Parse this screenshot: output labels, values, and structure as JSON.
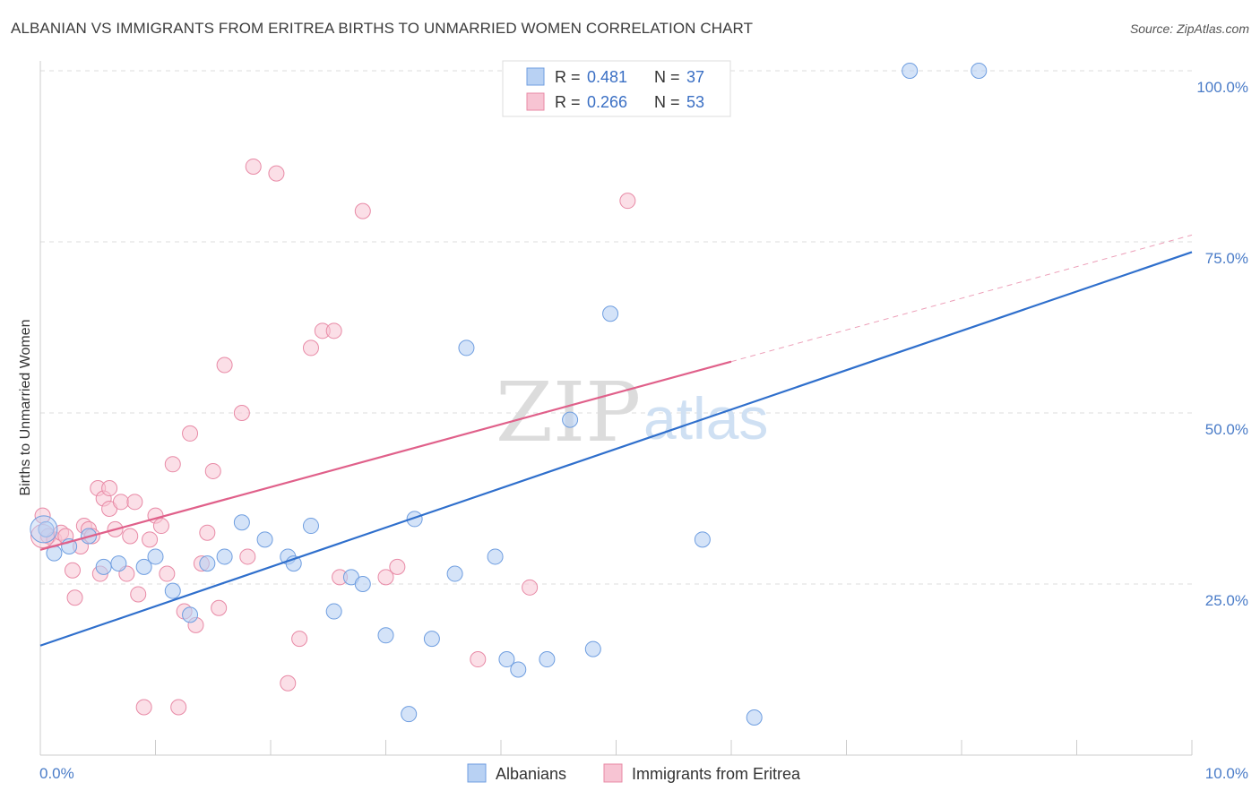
{
  "header": {
    "title": "ALBANIAN VS IMMIGRANTS FROM ERITREA BIRTHS TO UNMARRIED WOMEN CORRELATION CHART",
    "source": "Source: ZipAtlas.com"
  },
  "watermark": {
    "zip": "ZIP",
    "atlas": "atlas"
  },
  "colors": {
    "albanian_fill": "#b8d1f3",
    "albanian_stroke": "#6f9ee0",
    "albanian_line": "#2f6fcc",
    "eritrea_fill": "#f7c4d3",
    "eritrea_stroke": "#e88aa6",
    "eritrea_line": "#e0608a",
    "grid": "#dddddd",
    "axis_text": "#4a7cc8"
  },
  "legend": {
    "rows": [
      {
        "r_label": "R =",
        "r_value": "0.481",
        "n_label": "N =",
        "n_value": "37"
      },
      {
        "r_label": "R =",
        "r_value": "0.266",
        "n_label": "N =",
        "n_value": "53"
      }
    ]
  },
  "chart_data": {
    "type": "scatter",
    "title": "ALBANIAN VS IMMIGRANTS FROM ERITREA BIRTHS TO UNMARRIED WOMEN CORRELATION CHART",
    "xlabel": "",
    "ylabel": "Births to Unmarried Women",
    "xlim": [
      0,
      10
    ],
    "ylim": [
      0,
      105
    ],
    "x_tick_labels": [
      "0.0%",
      "10.0%"
    ],
    "y_ticks": [
      25,
      50,
      75,
      100
    ],
    "y_tick_labels": [
      "25.0%",
      "50.0%",
      "75.0%",
      "100.0%"
    ],
    "grid": true,
    "legend_position": "top-center",
    "series": [
      {
        "name": "Albanians",
        "r": 0.481,
        "n": 37,
        "trend": {
          "x": [
            0,
            10
          ],
          "y": [
            16.0,
            73.5
          ]
        },
        "points": [
          [
            0.05,
            33.0
          ],
          [
            0.12,
            29.5
          ],
          [
            0.25,
            30.5
          ],
          [
            0.42,
            32.0
          ],
          [
            0.55,
            27.5
          ],
          [
            0.68,
            28.0
          ],
          [
            0.9,
            27.5
          ],
          [
            1.0,
            29.0
          ],
          [
            1.15,
            24.0
          ],
          [
            1.3,
            20.5
          ],
          [
            1.45,
            28.0
          ],
          [
            1.6,
            29.0
          ],
          [
            1.75,
            34.0
          ],
          [
            1.95,
            31.5
          ],
          [
            2.15,
            29.0
          ],
          [
            2.2,
            28.0
          ],
          [
            2.35,
            33.5
          ],
          [
            2.55,
            21.0
          ],
          [
            2.7,
            26.0
          ],
          [
            2.8,
            25.0
          ],
          [
            3.0,
            17.5
          ],
          [
            3.2,
            6.0
          ],
          [
            3.25,
            34.5
          ],
          [
            3.4,
            17.0
          ],
          [
            3.6,
            26.5
          ],
          [
            3.7,
            59.5
          ],
          [
            3.95,
            29.0
          ],
          [
            4.05,
            14.0
          ],
          [
            4.15,
            12.5
          ],
          [
            4.4,
            14.0
          ],
          [
            4.6,
            49.0
          ],
          [
            4.8,
            15.5
          ],
          [
            4.95,
            64.5
          ],
          [
            5.75,
            31.5
          ],
          [
            6.2,
            5.5
          ],
          [
            7.55,
            100.0
          ],
          [
            8.15,
            100.0
          ]
        ]
      },
      {
        "name": "Immigrants from Eritrea",
        "r": 0.266,
        "n": 53,
        "trend": {
          "x": [
            0,
            6.0
          ],
          "y": [
            30.0,
            57.5
          ]
        },
        "trend_extension": {
          "x": [
            6.0,
            10
          ],
          "y": [
            57.5,
            76.0
          ]
        },
        "points": [
          [
            0.02,
            35.0
          ],
          [
            0.07,
            32.0
          ],
          [
            0.12,
            31.5
          ],
          [
            0.18,
            32.5
          ],
          [
            0.22,
            32.0
          ],
          [
            0.28,
            27.0
          ],
          [
            0.3,
            23.0
          ],
          [
            0.35,
            30.5
          ],
          [
            0.38,
            33.5
          ],
          [
            0.42,
            33.0
          ],
          [
            0.45,
            32.0
          ],
          [
            0.5,
            39.0
          ],
          [
            0.52,
            26.5
          ],
          [
            0.55,
            37.5
          ],
          [
            0.6,
            36.0
          ],
          [
            0.65,
            33.0
          ],
          [
            0.6,
            39.0
          ],
          [
            0.7,
            37.0
          ],
          [
            0.75,
            26.5
          ],
          [
            0.78,
            32.0
          ],
          [
            0.82,
            37.0
          ],
          [
            0.85,
            23.5
          ],
          [
            0.9,
            7.0
          ],
          [
            0.95,
            31.5
          ],
          [
            1.0,
            35.0
          ],
          [
            1.05,
            33.5
          ],
          [
            1.1,
            26.5
          ],
          [
            1.15,
            42.5
          ],
          [
            1.2,
            7.0
          ],
          [
            1.25,
            21.0
          ],
          [
            1.3,
            47.0
          ],
          [
            1.35,
            19.0
          ],
          [
            1.4,
            28.0
          ],
          [
            1.45,
            32.5
          ],
          [
            1.5,
            41.5
          ],
          [
            1.55,
            21.5
          ],
          [
            1.6,
            57.0
          ],
          [
            1.75,
            50.0
          ],
          [
            1.8,
            29.0
          ],
          [
            1.85,
            86.0
          ],
          [
            2.05,
            85.0
          ],
          [
            2.15,
            10.5
          ],
          [
            2.25,
            17.0
          ],
          [
            2.35,
            59.5
          ],
          [
            2.45,
            62.0
          ],
          [
            2.55,
            62.0
          ],
          [
            2.6,
            26.0
          ],
          [
            2.8,
            79.5
          ],
          [
            3.0,
            26.0
          ],
          [
            3.1,
            27.5
          ],
          [
            3.8,
            14.0
          ],
          [
            4.25,
            24.5
          ],
          [
            5.1,
            81.0
          ]
        ]
      }
    ]
  }
}
